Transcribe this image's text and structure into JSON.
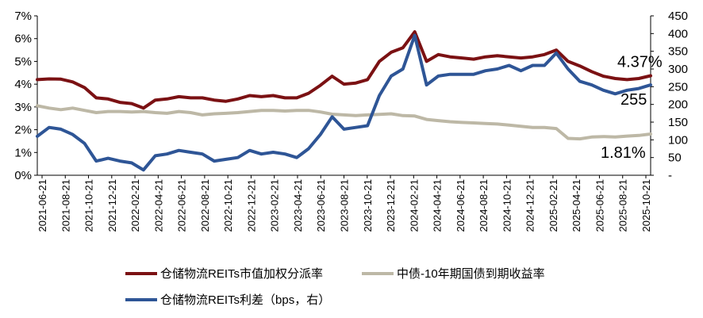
{
  "chart_data": {
    "type": "line",
    "colors": {
      "reit_yield": "#7B1113",
      "cgb_10y": "#BDB8A6",
      "spread": "#2E5596"
    },
    "left_axis": {
      "ticks": [
        "0%",
        "1%",
        "2%",
        "3%",
        "4%",
        "5%",
        "6%",
        "7%"
      ],
      "ylim": [
        0,
        7
      ]
    },
    "right_axis": {
      "ticks": [
        "-",
        "50",
        "100",
        "150",
        "200",
        "250",
        "300",
        "350",
        "400",
        "450"
      ],
      "ylim": [
        0,
        450
      ]
    },
    "x_tick_labels": [
      "2021-06-21",
      "2021-08-21",
      "2021-10-21",
      "2021-12-21",
      "2022-02-21",
      "2022-04-21",
      "2022-06-21",
      "2022-08-21",
      "2022-10-21",
      "2022-12-21",
      "2023-02-21",
      "2023-04-21",
      "2023-06-21",
      "2023-08-21",
      "2023-10-21",
      "2023-12-21",
      "2024-02-21",
      "2024-04-21",
      "2024-06-21",
      "2024-08-21",
      "2024-10-21",
      "2024-12-21",
      "2025-02-21",
      "2025-04-21",
      "2025-06-21",
      "2025-08-21",
      "2025-10-21"
    ],
    "series": [
      {
        "name": "仓储物流REITs市值加权分派率",
        "axis": "left",
        "values": [
          4.2,
          4.23,
          4.22,
          4.1,
          3.85,
          3.4,
          3.35,
          3.2,
          3.15,
          2.95,
          3.3,
          3.35,
          3.45,
          3.4,
          3.4,
          3.3,
          3.25,
          3.35,
          3.5,
          3.45,
          3.5,
          3.4,
          3.4,
          3.6,
          3.95,
          4.35,
          4.0,
          4.05,
          4.2,
          5.0,
          5.4,
          5.6,
          6.3,
          5.0,
          5.3,
          5.2,
          5.15,
          5.1,
          5.2,
          5.25,
          5.2,
          5.15,
          5.2,
          5.3,
          5.5,
          5.0,
          4.8,
          4.55,
          4.35,
          4.25,
          4.2,
          4.25,
          4.37
        ]
      },
      {
        "name": "中债-10年期国债到期收益率",
        "axis": "left",
        "values": [
          3.05,
          2.95,
          2.88,
          2.95,
          2.85,
          2.75,
          2.8,
          2.8,
          2.78,
          2.8,
          2.75,
          2.72,
          2.8,
          2.75,
          2.65,
          2.7,
          2.72,
          2.75,
          2.8,
          2.85,
          2.85,
          2.82,
          2.85,
          2.85,
          2.78,
          2.68,
          2.65,
          2.62,
          2.65,
          2.67,
          2.7,
          2.62,
          2.6,
          2.45,
          2.4,
          2.35,
          2.32,
          2.3,
          2.27,
          2.25,
          2.2,
          2.15,
          2.1,
          2.1,
          2.05,
          1.62,
          1.6,
          1.68,
          1.7,
          1.68,
          1.72,
          1.75,
          1.81
        ]
      },
      {
        "name": "仓储物流REITs利差（bps，右）",
        "axis": "right",
        "values": [
          110,
          135,
          130,
          115,
          90,
          40,
          48,
          40,
          35,
          15,
          55,
          60,
          70,
          65,
          60,
          40,
          45,
          50,
          70,
          60,
          65,
          60,
          50,
          75,
          115,
          165,
          130,
          135,
          140,
          225,
          280,
          300,
          395,
          255,
          280,
          285,
          285,
          285,
          295,
          300,
          310,
          295,
          310,
          310,
          345,
          300,
          265,
          255,
          240,
          230,
          240,
          245,
          255
        ]
      }
    ],
    "annotations": [
      {
        "text": "4.37%",
        "series": "仓储物流REITs市值加权分派率"
      },
      {
        "text": "255",
        "series": "仓储物流REITs利差（bps，右）"
      },
      {
        "text": "1.81%",
        "series": "中债-10年期国债到期收益率"
      }
    ],
    "legend_position": "bottom",
    "grid": false
  }
}
